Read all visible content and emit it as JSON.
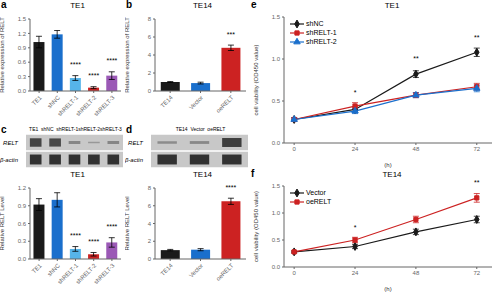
{
  "chart_data": [
    {
      "type": "bar",
      "title": "TE1",
      "ylabel": "Relative expression of RELT",
      "categories": [
        "TE1",
        "shNC",
        "shRELT-1",
        "shRELT-2",
        "shRELT-3"
      ],
      "values": [
        1.02,
        1.18,
        0.27,
        0.07,
        0.32
      ],
      "errors": [
        0.12,
        0.08,
        0.05,
        0.02,
        0.08
      ],
      "colors": [
        "#1a1a1a",
        "#1a6fcc",
        "#56b4e9",
        "#cc2222",
        "#9b59b6"
      ],
      "ylim": [
        0,
        1.5
      ],
      "yticks": [
        {
          "value": 0,
          "label": "0.0"
        },
        0.3,
        0.6,
        0.9,
        1.2,
        1.5
      ],
      "annotations": [
        {
          "text": "a"
        },
        {
          "category": "shRELT-1",
          "text": "****"
        },
        {
          "category": "shRELT-2",
          "text": "****"
        },
        {
          "category": "shRELT-3",
          "text": "****"
        }
      ]
    },
    {
      "type": "bar",
      "title": "TE14",
      "ylabel": "Relative expression of RELT",
      "categories": [
        "TE14",
        "Vector",
        "oeRELT"
      ],
      "values": [
        1.0,
        0.88,
        4.8
      ],
      "errors": [
        0.05,
        0.1,
        0.3
      ],
      "colors": [
        "#1a1a1a",
        "#1a6fcc",
        "#cc2222"
      ],
      "ylim": [
        0,
        8
      ],
      "yticks": [
        0,
        2,
        4,
        6,
        8
      ],
      "annotations": [
        {
          "text": "b"
        },
        {
          "category": "oeRELT",
          "text": "***"
        }
      ]
    },
    {
      "type": "blot",
      "title": "TE1  shNC  shRELT-1shRELT-2shRELT-3",
      "categories": [
        "RELT",
        "β-actin"
      ],
      "cells": [
        [
          0.85,
          0.82,
          0.3,
          0.15,
          0.3
        ],
        [
          1.0,
          1.0,
          1.0,
          1.0,
          1.0
        ]
      ],
      "color": "#c8c8c8",
      "annotations": [
        {
          "text": "c"
        }
      ]
    },
    {
      "type": "blot",
      "title": "TE14  Vector  oeRELT",
      "categories": [
        "RELT",
        "β-actin"
      ],
      "cells": [
        [
          0.25,
          0.28,
          0.9
        ],
        [
          1.0,
          1.0,
          1.0
        ]
      ],
      "color": "#c8c8c8",
      "annotations": [
        {
          "text": "d"
        }
      ]
    },
    {
      "type": "bar",
      "title": "TE1",
      "ylabel": "Relative RELT Level",
      "categories": [
        "TE1",
        "shNC",
        "shRELT-1",
        "shRELT-2",
        "shRELT-3"
      ],
      "values": [
        0.92,
        1.0,
        0.17,
        0.08,
        0.28
      ],
      "errors": [
        0.1,
        0.12,
        0.04,
        0.03,
        0.08
      ],
      "colors": [
        "#1a1a1a",
        "#1a6fcc",
        "#56b4e9",
        "#cc2222",
        "#9b59b6"
      ],
      "ylim": [
        0,
        1.2
      ],
      "yticks": [
        {
          "value": 0,
          "label": "0.0"
        },
        0.3,
        0.6,
        0.9,
        1.2
      ],
      "annotations": [
        {
          "category": "shRELT-1",
          "text": "****"
        },
        {
          "category": "shRELT-2",
          "text": "****"
        },
        {
          "category": "shRELT-3",
          "text": "****"
        }
      ]
    },
    {
      "type": "bar",
      "title": "TE14",
      "ylabel": "Relative RELT Level",
      "categories": [
        "TE14",
        "Vector",
        "oeRELT"
      ],
      "values": [
        1.0,
        1.05,
        6.5
      ],
      "errors": [
        0.08,
        0.12,
        0.35
      ],
      "colors": [
        "#1a1a1a",
        "#1a6fcc",
        "#cc2222"
      ],
      "ylim": [
        0,
        8
      ],
      "yticks": [
        0,
        2,
        4,
        6,
        8
      ],
      "annotations": [
        {
          "category": "oeRELT",
          "text": "****"
        }
      ]
    },
    {
      "type": "line",
      "title": "TE1",
      "xlabel": "(h)",
      "ylabel": "cell viability (OD450 value)",
      "x": [
        0,
        24,
        48,
        72
      ],
      "xlim": [
        -4,
        78
      ],
      "xticks": [
        0,
        24,
        48,
        72
      ],
      "ylim": [
        0.0,
        1.5
      ],
      "yticks": [
        {
          "value": 0,
          "label": "0.0"
        },
        0.5,
        {
          "value": 1,
          "label": "1.0"
        },
        1.5
      ],
      "legend": "upper left",
      "series": [
        {
          "name": "shNC",
          "color": "#1a1a1a",
          "marker": "diamond",
          "values": [
            0.28,
            0.4,
            0.82,
            1.08
          ],
          "errors": [
            0.02,
            0.03,
            0.04,
            0.05
          ]
        },
        {
          "name": "shRELT-1",
          "color": "#cc2222",
          "marker": "square",
          "values": [
            0.28,
            0.44,
            0.57,
            0.67
          ],
          "errors": [
            0.02,
            0.04,
            0.03,
            0.04
          ]
        },
        {
          "name": "shRELT-2",
          "color": "#1a6fcc",
          "marker": "triangle",
          "values": [
            0.28,
            0.38,
            0.57,
            0.65
          ],
          "errors": [
            0.02,
            0.03,
            0.03,
            0.04
          ]
        }
      ],
      "annotations": [
        {
          "text": "e"
        },
        {
          "x": 24,
          "y": 0.5,
          "text": "*"
        },
        {
          "x": 48,
          "y": 0.9,
          "text": "**"
        },
        {
          "x": 72,
          "y": 1.15,
          "text": "**"
        }
      ]
    },
    {
      "type": "line",
      "title": "TE14",
      "xlabel": "(h)",
      "ylabel": "cell viability (OD450 value)",
      "x": [
        0,
        24,
        48,
        72
      ],
      "xlim": [
        -4,
        78
      ],
      "xticks": [
        0,
        24,
        48,
        72
      ],
      "ylim": [
        0.0,
        1.5
      ],
      "yticks": [
        {
          "value": 0,
          "label": "0.0"
        },
        0.5,
        {
          "value": 1,
          "label": "1.0"
        },
        1.5
      ],
      "legend": "upper left",
      "series": [
        {
          "name": "Vector",
          "color": "#1a1a1a",
          "marker": "diamond",
          "values": [
            0.28,
            0.38,
            0.65,
            0.88
          ],
          "errors": [
            0.02,
            0.04,
            0.05,
            0.06
          ]
        },
        {
          "name": "oeRELT",
          "color": "#cc2222",
          "marker": "square",
          "values": [
            0.28,
            0.5,
            0.88,
            1.28
          ],
          "errors": [
            0.02,
            0.05,
            0.06,
            0.08
          ]
        }
      ],
      "annotations": [
        {
          "text": "f"
        },
        {
          "x": 24,
          "y": 0.58,
          "text": "*"
        },
        {
          "x": 72,
          "y": 1.4,
          "text": "**"
        }
      ]
    }
  ]
}
